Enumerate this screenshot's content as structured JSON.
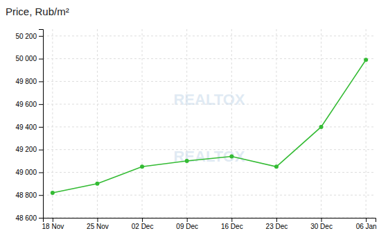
{
  "chart_data": {
    "type": "line",
    "title": "Price, Rub/m²",
    "x": [
      0,
      7,
      14,
      21,
      28,
      35,
      42,
      49
    ],
    "values": [
      48820,
      48900,
      49050,
      49100,
      49140,
      49050,
      49400,
      49990
    ],
    "color": "#33bb33",
    "marker": "circle",
    "xlim": [
      -1.5,
      50.5
    ],
    "xticks": [
      {
        "value": 0,
        "label": "18 Nov"
      },
      {
        "value": 7,
        "label": "25 Nov"
      },
      {
        "value": 14,
        "label": "02 Dec"
      },
      {
        "value": 21,
        "label": "09 Dec"
      },
      {
        "value": 28,
        "label": "16 Dec"
      },
      {
        "value": 35,
        "label": "23 Dec"
      },
      {
        "value": 42,
        "label": "30 Dec"
      },
      {
        "value": 49,
        "label": "06 Jan"
      }
    ],
    "ylim": [
      48600,
      50260
    ],
    "yticks": [
      {
        "value": 48600,
        "label": "48 600"
      },
      {
        "value": 48800,
        "label": "48 800"
      },
      {
        "value": 49000,
        "label": "49 000"
      },
      {
        "value": 49200,
        "label": "49 200"
      },
      {
        "value": 49400,
        "label": "49 400"
      },
      {
        "value": 49600,
        "label": "49 600"
      },
      {
        "value": 49800,
        "label": "49 800"
      },
      {
        "value": 50000,
        "label": "50 000"
      },
      {
        "value": 50200,
        "label": "50 200"
      }
    ],
    "grid": true,
    "annotations": [
      "REALTOX",
      "REALTOX"
    ]
  }
}
